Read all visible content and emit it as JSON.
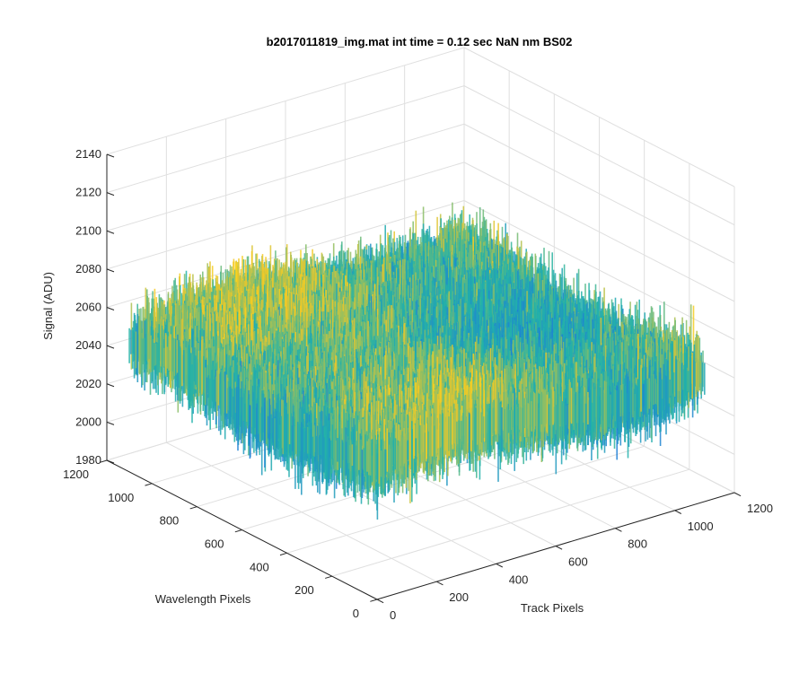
{
  "chart_data": {
    "type": "surface",
    "title": "b2017011819_img.mat int time = 0.12 sec  NaN nm BS02",
    "xlabel": "Track Pixels",
    "ylabel": "Wavelength Pixels",
    "zlabel": "Signal (ADU)",
    "xlim": [
      0,
      1200
    ],
    "ylim": [
      0,
      1200
    ],
    "zlim": [
      1980,
      2140
    ],
    "x_ticks": [
      "0",
      "200",
      "400",
      "600",
      "800",
      "1000",
      "1200"
    ],
    "y_ticks": [
      "0",
      "200",
      "400",
      "600",
      "800",
      "1000",
      "1200"
    ],
    "z_ticks": [
      "1980",
      "2000",
      "2020",
      "2040",
      "2060",
      "2080",
      "2100",
      "2120",
      "2140"
    ],
    "grid": true,
    "colormap": "parula",
    "surface_range": {
      "x": [
        0,
        1100
      ],
      "y": [
        0,
        1100
      ]
    },
    "signal_typical": [
      2025,
      2065
    ],
    "signal_min": 1990,
    "signal_max": 2135,
    "colors": {
      "low": "#1f7fd6",
      "mid": "#22b3a8",
      "high": "#f5c824",
      "peak": "#f9f711"
    }
  }
}
